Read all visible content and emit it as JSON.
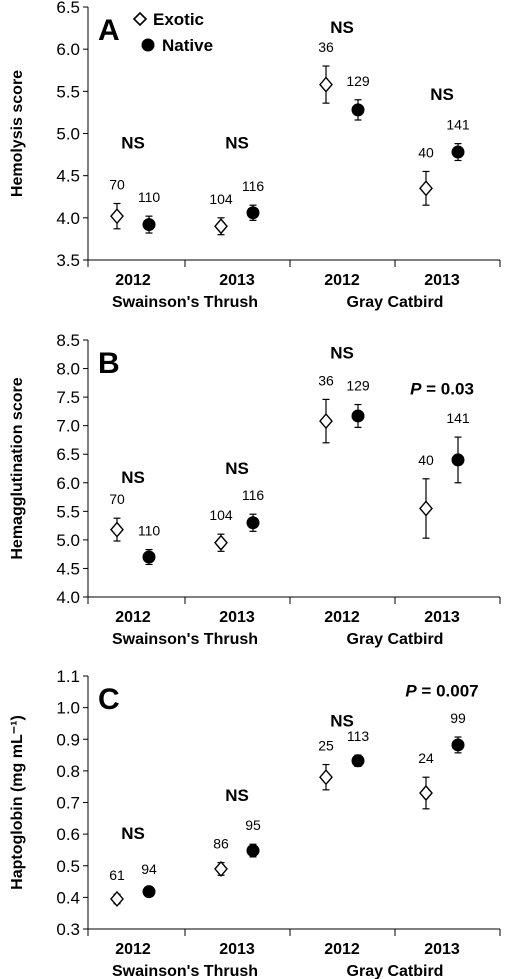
{
  "legend": [
    {
      "name": "Exotic",
      "marker": "open-diamond"
    },
    {
      "name": "Native",
      "marker": "filled-circle"
    }
  ],
  "chart_data": [
    {
      "type": "scatter",
      "panel_label": "A",
      "ylabel": "Hemolysis score",
      "ylim": [
        3.5,
        6.5
      ],
      "ytick_step": 0.5,
      "ytick_decimals": 1,
      "year_labels": [
        "2012",
        "2013",
        "2012",
        "2013"
      ],
      "group_labels": [
        "Swainson's Thrush",
        "Gray Catbird"
      ],
      "series": [
        {
          "name": "Exotic",
          "values": [
            4.02,
            3.9,
            5.58,
            4.35
          ],
          "errors": [
            0.15,
            0.1,
            0.22,
            0.2
          ],
          "n": [
            "70",
            "104",
            "36",
            "40"
          ]
        },
        {
          "name": "Native",
          "values": [
            3.92,
            4.06,
            5.28,
            4.78
          ],
          "errors": [
            0.1,
            0.09,
            0.12,
            0.1
          ],
          "n": [
            "110",
            "116",
            "129",
            "141"
          ]
        }
      ],
      "annotations": [
        {
          "text": "NS",
          "category": 0,
          "y": 4.82
        },
        {
          "text": "NS",
          "category": 1,
          "y": 4.82
        },
        {
          "text": "NS",
          "category": 2,
          "y": 6.19
        },
        {
          "text": "NS",
          "category": 3,
          "y": 5.4
        }
      ]
    },
    {
      "type": "scatter",
      "panel_label": "B",
      "ylabel": "Hemagglutination score",
      "ylim": [
        4.0,
        8.5
      ],
      "ytick_step": 0.5,
      "ytick_decimals": 1,
      "year_labels": [
        "2012",
        "2013",
        "2012",
        "2013"
      ],
      "group_labels": [
        "Swainson's Thrush",
        "Gray Catbird"
      ],
      "series": [
        {
          "name": "Exotic",
          "values": [
            5.18,
            4.95,
            7.08,
            5.55
          ],
          "errors": [
            0.2,
            0.15,
            0.38,
            0.52
          ],
          "n": [
            "70",
            "104",
            "36",
            "40"
          ]
        },
        {
          "name": "Native",
          "values": [
            4.7,
            5.3,
            7.17,
            6.4
          ],
          "errors": [
            0.13,
            0.15,
            0.2,
            0.4
          ],
          "n": [
            "110",
            "116",
            "129",
            "141"
          ]
        }
      ],
      "annotations": [
        {
          "text": "NS",
          "category": 0,
          "y": 6.0
        },
        {
          "text": "NS",
          "category": 1,
          "y": 6.15
        },
        {
          "text": "NS",
          "category": 2,
          "y": 8.18
        },
        {
          "text": "P = 0.03",
          "category": 3,
          "y": 7.55
        }
      ]
    },
    {
      "type": "scatter",
      "panel_label": "C",
      "ylabel": "Haptoglobin (mg mL⁻¹)",
      "ylim": [
        0.3,
        1.1
      ],
      "ytick_step": 0.1,
      "ytick_decimals": 1,
      "year_labels": [
        "2012",
        "2013",
        "2012",
        "2013"
      ],
      "group_labels": [
        "Swainson's Thrush",
        "Gray Catbird"
      ],
      "series": [
        {
          "name": "Exotic",
          "values": [
            0.395,
            0.49,
            0.78,
            0.73
          ],
          "errors": [
            0.015,
            0.02,
            0.04,
            0.05
          ],
          "n": [
            "61",
            "86",
            "25",
            "24"
          ]
        },
        {
          "name": "Native",
          "values": [
            0.418,
            0.548,
            0.832,
            0.882
          ],
          "errors": [
            0.012,
            0.02,
            0.018,
            0.025
          ],
          "n": [
            "94",
            "95",
            "113",
            "99"
          ]
        }
      ],
      "annotations": [
        {
          "text": "NS",
          "category": 0,
          "y": 0.585
        },
        {
          "text": "NS",
          "category": 1,
          "y": 0.705
        },
        {
          "text": "NS",
          "category": 2,
          "y": 0.94
        },
        {
          "text": "P = 0.007",
          "category": 3,
          "y": 1.035
        }
      ]
    }
  ]
}
